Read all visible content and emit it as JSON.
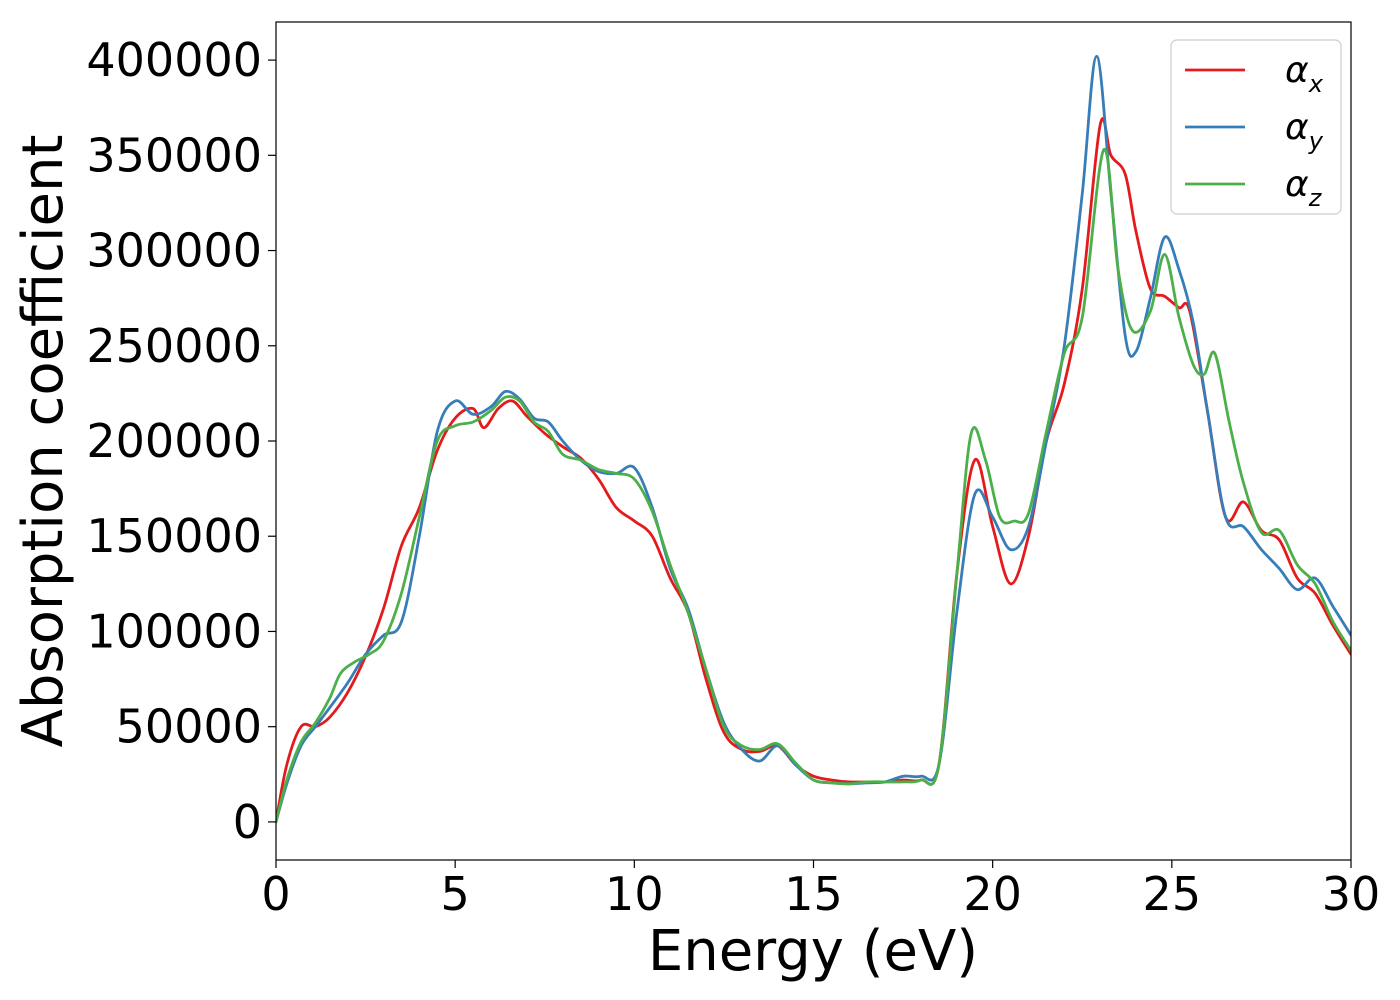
{
  "chart_data": {
    "type": "line",
    "xlabel": "Energy (eV)",
    "ylabel": "Absorption coefficient",
    "xlim": [
      0,
      30
    ],
    "ylim": [
      -20000,
      420000
    ],
    "xticks": [
      0,
      5,
      10,
      15,
      20,
      25,
      30
    ],
    "xtick_labels": [
      "0",
      "5",
      "10",
      "15",
      "20",
      "25",
      "30"
    ],
    "yticks": [
      0,
      50000,
      100000,
      150000,
      200000,
      250000,
      300000,
      350000,
      400000
    ],
    "ytick_labels": [
      "0",
      "50000",
      "100000",
      "150000",
      "200000",
      "250000",
      "300000",
      "350000",
      "400000"
    ],
    "grid": false,
    "legend_position": "top-right",
    "series": [
      {
        "name": "α_x",
        "label_main": "α",
        "label_sub": "x",
        "color": "#e41a1c",
        "points": [
          [
            0,
            0
          ],
          [
            0.3,
            30000
          ],
          [
            0.7,
            50000
          ],
          [
            1.1,
            50000
          ],
          [
            1.5,
            55000
          ],
          [
            2.0,
            68000
          ],
          [
            2.5,
            87000
          ],
          [
            3.0,
            112000
          ],
          [
            3.5,
            145000
          ],
          [
            4.0,
            165000
          ],
          [
            4.5,
            195000
          ],
          [
            5.0,
            212000
          ],
          [
            5.5,
            217000
          ],
          [
            5.8,
            207000
          ],
          [
            6.2,
            217000
          ],
          [
            6.6,
            221000
          ],
          [
            7.0,
            213000
          ],
          [
            7.5,
            204000
          ],
          [
            8.0,
            197000
          ],
          [
            8.5,
            191000
          ],
          [
            9.0,
            180000
          ],
          [
            9.5,
            165000
          ],
          [
            10.0,
            158000
          ],
          [
            10.5,
            150000
          ],
          [
            11.0,
            128000
          ],
          [
            11.5,
            110000
          ],
          [
            12.0,
            75000
          ],
          [
            12.5,
            47000
          ],
          [
            13.0,
            38000
          ],
          [
            13.5,
            37000
          ],
          [
            14.0,
            40000
          ],
          [
            14.5,
            30000
          ],
          [
            15.0,
            24000
          ],
          [
            15.5,
            22000
          ],
          [
            16.0,
            21000
          ],
          [
            16.5,
            21000
          ],
          [
            17.0,
            21000
          ],
          [
            17.5,
            22000
          ],
          [
            18.0,
            22000
          ],
          [
            18.5,
            30000
          ],
          [
            19.0,
            130000
          ],
          [
            19.5,
            190000
          ],
          [
            20.0,
            155000
          ],
          [
            20.5,
            125000
          ],
          [
            21.0,
            150000
          ],
          [
            21.5,
            200000
          ],
          [
            22.0,
            230000
          ],
          [
            22.5,
            280000
          ],
          [
            23.0,
            366000
          ],
          [
            23.3,
            350000
          ],
          [
            23.7,
            340000
          ],
          [
            24.0,
            310000
          ],
          [
            24.4,
            280000
          ],
          [
            24.8,
            276000
          ],
          [
            25.2,
            270000
          ],
          [
            25.5,
            268000
          ],
          [
            26.0,
            215000
          ],
          [
            26.5,
            160000
          ],
          [
            27.0,
            168000
          ],
          [
            27.5,
            153000
          ],
          [
            28.0,
            148000
          ],
          [
            28.5,
            128000
          ],
          [
            29.0,
            120000
          ],
          [
            29.5,
            103000
          ],
          [
            30.0,
            88000
          ]
        ]
      },
      {
        "name": "α_y",
        "label_main": "α",
        "label_sub": "y",
        "color": "#377eb8",
        "points": [
          [
            0,
            0
          ],
          [
            0.3,
            20000
          ],
          [
            0.7,
            40000
          ],
          [
            1.1,
            50000
          ],
          [
            1.5,
            60000
          ],
          [
            2.0,
            73000
          ],
          [
            2.5,
            88000
          ],
          [
            3.0,
            98000
          ],
          [
            3.5,
            105000
          ],
          [
            4.0,
            150000
          ],
          [
            4.5,
            205000
          ],
          [
            5.0,
            221000
          ],
          [
            5.5,
            214000
          ],
          [
            6.0,
            218000
          ],
          [
            6.4,
            226000
          ],
          [
            6.8,
            222000
          ],
          [
            7.2,
            212000
          ],
          [
            7.6,
            210000
          ],
          [
            8.0,
            200000
          ],
          [
            8.5,
            190000
          ],
          [
            9.0,
            184000
          ],
          [
            9.5,
            183000
          ],
          [
            10.0,
            186000
          ],
          [
            10.5,
            165000
          ],
          [
            11.0,
            133000
          ],
          [
            11.5,
            112000
          ],
          [
            12.0,
            80000
          ],
          [
            12.5,
            52000
          ],
          [
            13.0,
            38000
          ],
          [
            13.5,
            32000
          ],
          [
            14.0,
            40000
          ],
          [
            14.5,
            30000
          ],
          [
            15.0,
            22000
          ],
          [
            15.5,
            20500
          ],
          [
            16.0,
            20000
          ],
          [
            16.5,
            20500
          ],
          [
            17.0,
            21000
          ],
          [
            17.5,
            24000
          ],
          [
            18.0,
            24000
          ],
          [
            18.5,
            30000
          ],
          [
            19.0,
            110000
          ],
          [
            19.5,
            172000
          ],
          [
            20.0,
            160000
          ],
          [
            20.5,
            143000
          ],
          [
            21.0,
            155000
          ],
          [
            21.5,
            200000
          ],
          [
            22.0,
            250000
          ],
          [
            22.5,
            330000
          ],
          [
            22.9,
            402000
          ],
          [
            23.3,
            330000
          ],
          [
            23.7,
            255000
          ],
          [
            24.0,
            247000
          ],
          [
            24.4,
            275000
          ],
          [
            24.8,
            307000
          ],
          [
            25.2,
            290000
          ],
          [
            25.6,
            262000
          ],
          [
            26.0,
            215000
          ],
          [
            26.5,
            160000
          ],
          [
            27.0,
            155000
          ],
          [
            27.5,
            143000
          ],
          [
            28.0,
            133000
          ],
          [
            28.5,
            122000
          ],
          [
            29.0,
            128000
          ],
          [
            29.5,
            113000
          ],
          [
            30.0,
            98000
          ]
        ]
      },
      {
        "name": "α_z",
        "label_main": "α",
        "label_sub": "z",
        "color": "#4daf4a",
        "points": [
          [
            0,
            0
          ],
          [
            0.3,
            22000
          ],
          [
            0.7,
            42000
          ],
          [
            1.1,
            52000
          ],
          [
            1.5,
            65000
          ],
          [
            1.8,
            78000
          ],
          [
            2.2,
            84000
          ],
          [
            2.6,
            88000
          ],
          [
            3.0,
            95000
          ],
          [
            3.5,
            120000
          ],
          [
            4.0,
            160000
          ],
          [
            4.5,
            200000
          ],
          [
            5.0,
            208000
          ],
          [
            5.5,
            210000
          ],
          [
            6.0,
            216000
          ],
          [
            6.4,
            223000
          ],
          [
            6.8,
            221000
          ],
          [
            7.2,
            210000
          ],
          [
            7.6,
            205000
          ],
          [
            8.0,
            193000
          ],
          [
            8.5,
            190000
          ],
          [
            9.0,
            185000
          ],
          [
            9.5,
            183000
          ],
          [
            10.0,
            180000
          ],
          [
            10.5,
            163000
          ],
          [
            11.0,
            135000
          ],
          [
            11.5,
            110000
          ],
          [
            12.0,
            80000
          ],
          [
            12.5,
            50000
          ],
          [
            13.0,
            40000
          ],
          [
            13.5,
            38000
          ],
          [
            14.0,
            41000
          ],
          [
            14.5,
            31000
          ],
          [
            15.0,
            22000
          ],
          [
            15.5,
            20500
          ],
          [
            16.0,
            20000
          ],
          [
            16.5,
            21000
          ],
          [
            17.0,
            21000
          ],
          [
            17.5,
            21000
          ],
          [
            18.0,
            22000
          ],
          [
            18.5,
            30000
          ],
          [
            19.0,
            130000
          ],
          [
            19.4,
            204000
          ],
          [
            19.8,
            190000
          ],
          [
            20.2,
            160000
          ],
          [
            20.6,
            158000
          ],
          [
            21.0,
            162000
          ],
          [
            21.5,
            205000
          ],
          [
            22.0,
            246000
          ],
          [
            22.5,
            265000
          ],
          [
            23.1,
            353000
          ],
          [
            23.5,
            290000
          ],
          [
            23.9,
            258000
          ],
          [
            24.4,
            268000
          ],
          [
            24.8,
            298000
          ],
          [
            25.2,
            265000
          ],
          [
            25.6,
            240000
          ],
          [
            25.9,
            235000
          ],
          [
            26.2,
            246000
          ],
          [
            26.6,
            210000
          ],
          [
            27.0,
            178000
          ],
          [
            27.5,
            152000
          ],
          [
            28.0,
            153000
          ],
          [
            28.5,
            135000
          ],
          [
            29.0,
            125000
          ],
          [
            29.5,
            105000
          ],
          [
            30.0,
            90000
          ]
        ]
      }
    ]
  }
}
